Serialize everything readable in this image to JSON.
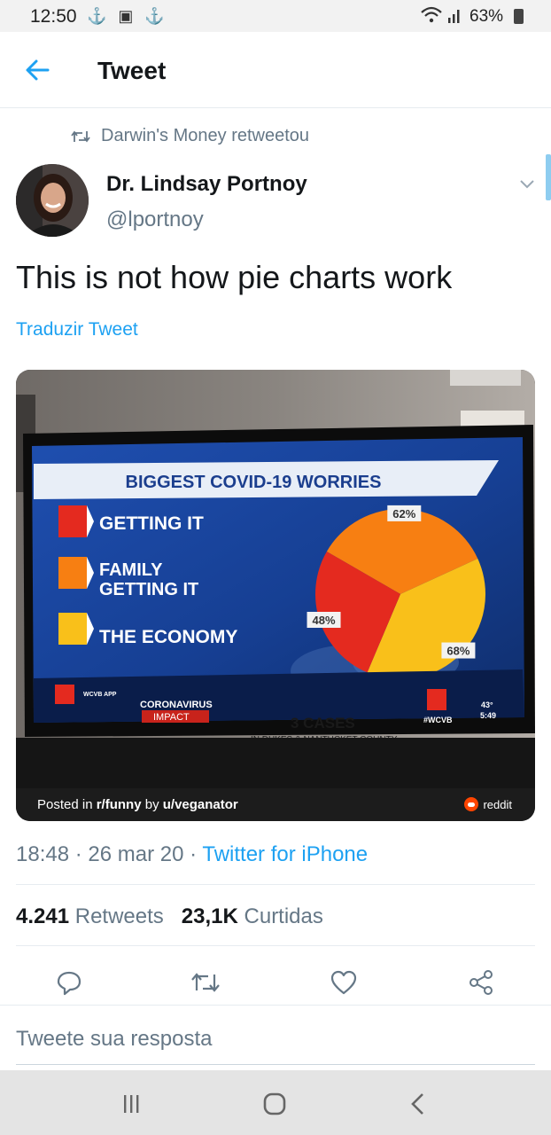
{
  "status_bar": {
    "time": "12:50",
    "icons": "⚓ ▣ ⚓",
    "battery": "63%"
  },
  "header": {
    "title": "Tweet"
  },
  "retweet": {
    "label": "Darwin's Money retweetou"
  },
  "author": {
    "name": "Dr. Lindsay Portnoy",
    "handle": "@lportnoy"
  },
  "tweet": {
    "text": "This is not how pie charts work",
    "translate_label": "Traduzir Tweet"
  },
  "media": {
    "chart_title": "BIGGEST COVID-19 WORRIES",
    "legend": [
      {
        "label": "GETTING IT",
        "color": "#e42a1f"
      },
      {
        "label": "FAMILY GETTING IT",
        "color": "#f77f12"
      },
      {
        "label": "THE ECONOMY",
        "color": "#f9c01a"
      }
    ],
    "chart_data": {
      "type": "pie",
      "title": "BIGGEST COVID-19 WORRIES",
      "slices": [
        {
          "label": "GETTING IT",
          "value": 48,
          "display": "48%",
          "color": "#e42a1f"
        },
        {
          "label": "FAMILY GETTING IT",
          "value": 62,
          "display": "62%",
          "color": "#f77f12"
        },
        {
          "label": "THE ECONOMY",
          "value": 68,
          "display": "68%",
          "color": "#f9c01a"
        }
      ]
    },
    "ticker": {
      "app_label": "WCVB APP",
      "impact_line1": "CORONAVIRUS",
      "impact_line2": "IMPACT",
      "cases": "3 CASES",
      "county": "IN DUKES & NANTUCKET COUNTY",
      "hashtag": "#WCVB",
      "temp": "43°",
      "time": "5:49"
    },
    "footer": {
      "posted_prefix": "Posted in ",
      "subreddit": "r/funny",
      "by": " by ",
      "user": "u/veganator",
      "brand": "reddit"
    }
  },
  "meta": {
    "time": "18:48",
    "sep1": " · ",
    "date": "26 mar 20",
    "sep2": " · ",
    "source": "Twitter for iPhone"
  },
  "stats": {
    "retweets_count": "4.241",
    "retweets_label": " Retweets",
    "likes_count": "23,1K",
    "likes_label": " Curtidas"
  },
  "reply": {
    "placeholder": "Tweete sua resposta"
  },
  "colors": {
    "accent": "#1da1f2",
    "text": "#14171a",
    "muted": "#657786"
  }
}
